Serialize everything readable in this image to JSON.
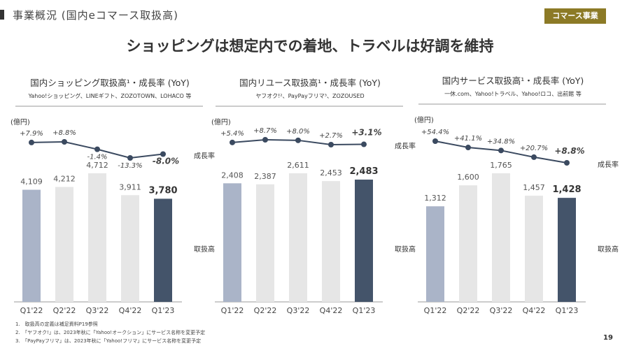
{
  "header": {
    "title": "事業概況 (国内eコマース取扱高)",
    "badge": "コマース事業"
  },
  "headline": "ショッピングは想定内での着地、トラベルは好調を維持",
  "colors": {
    "highlight_first": "#aab4c8",
    "middle": "#e6e6e6",
    "latest": "#44546a",
    "line": "#3b4a60",
    "badge": "#8c7a26"
  },
  "chart_data": [
    {
      "type": "bar+line",
      "title": "国内ショッピング取扱高¹・成長率 (YoY)",
      "subtitle": "Yahoo!ショッピング、LINEギフト、ZOZOTOWN、LOHACO 等",
      "unit": "(億円)",
      "categories": [
        "Q1'22",
        "Q2'22",
        "Q3'22",
        "Q4'22",
        "Q1'23"
      ],
      "values": [
        4109,
        4212,
        4712,
        3911,
        3780
      ],
      "value_labels": [
        "4,109",
        "4,212",
        "4,712",
        "3,911",
        "3,780"
      ],
      "growth": [
        7.9,
        8.8,
        -1.4,
        -13.3,
        -8.0
      ],
      "growth_labels": [
        "+7.9%",
        "+8.8%",
        "-1.4%",
        "-13.3%",
        "-8.0%"
      ],
      "line_label": "成長率",
      "bar_label": "取扱高"
    },
    {
      "type": "bar+line",
      "title": "国内リユース取扱高¹・成長率 (YoY)",
      "subtitle": "ヤフオク!²、PayPayフリマ³、ZOZOUSED",
      "unit": "(億円)",
      "categories": [
        "Q1'22",
        "Q2'22",
        "Q3'22",
        "Q4'22",
        "Q1'23"
      ],
      "values": [
        2408,
        2387,
        2611,
        2453,
        2483
      ],
      "value_labels": [
        "2,408",
        "2,387",
        "2,611",
        "2,453",
        "2,483"
      ],
      "growth": [
        5.4,
        8.7,
        8.0,
        2.7,
        3.1
      ],
      "growth_labels": [
        "+5.4%",
        "+8.7%",
        "+8.0%",
        "+2.7%",
        "+3.1%"
      ],
      "line_label": "成長率",
      "bar_label": "取扱高"
    },
    {
      "type": "bar+line",
      "title": "国内サービス取扱高¹・成長率 (YoY)",
      "subtitle": "一休.com、Yahoo!トラベル、Yahoo!ロコ、出前館 等",
      "unit": "(億円)",
      "categories": [
        "Q1'22",
        "Q2'22",
        "Q3'22",
        "Q4'22",
        "Q1'23"
      ],
      "values": [
        1312,
        1600,
        1765,
        1457,
        1428
      ],
      "value_labels": [
        "1,312",
        "1,600",
        "1,765",
        "1,457",
        "1,428"
      ],
      "growth": [
        54.4,
        41.1,
        34.8,
        20.7,
        8.8
      ],
      "growth_labels": [
        "+54.4%",
        "+41.1%",
        "+34.8%",
        "+20.7%",
        "+8.8%"
      ],
      "line_label": "成長率",
      "bar_label": "取扱高"
    }
  ],
  "footnotes": [
    "1.　取扱高の定義は補足資料P19参照",
    "2.　「ヤフオク!」は、2023年秋に「Yahoo!オークション」にサービス名称を変更予定",
    "3.　「PayPayフリマ」は、2023年秋に「Yahoo!フリマ」にサービス名称を変更予定"
  ],
  "page_number": "19"
}
